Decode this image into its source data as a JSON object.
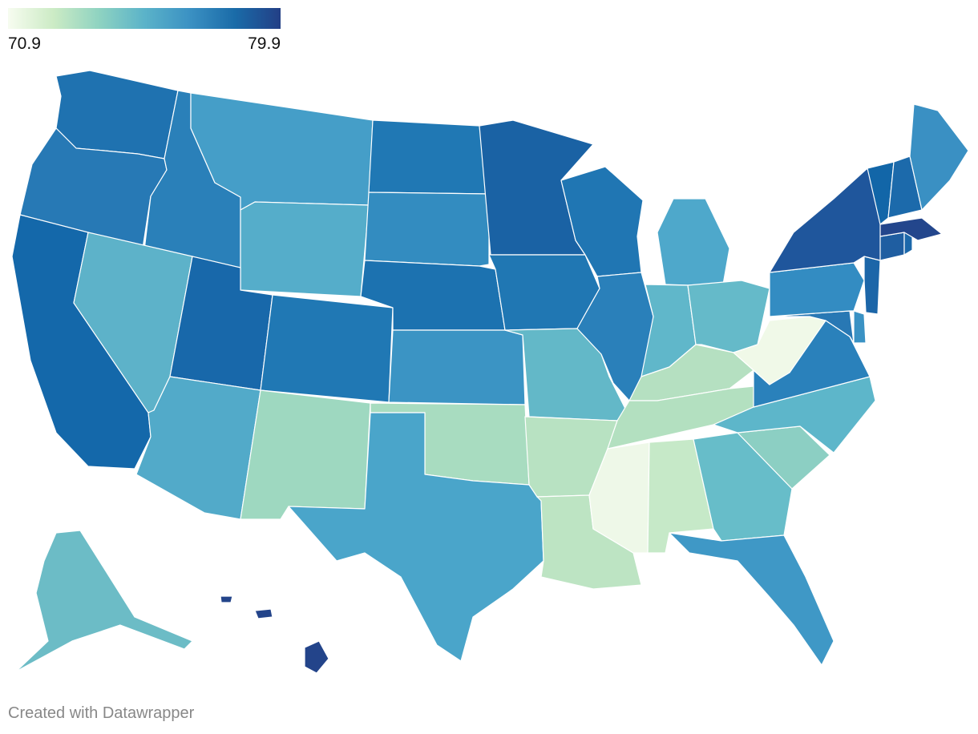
{
  "legend": {
    "min": "70.9",
    "max": "79.9",
    "min_value": 70.9,
    "max_value": 79.9,
    "gradient": [
      "#f7fcf0",
      "#ccebc5",
      "#8fd3c1",
      "#5bb3c9",
      "#3b91c3",
      "#1a6ba8",
      "#233f86"
    ]
  },
  "credit": "Created with Datawrapper",
  "states": [
    {
      "id": "WA",
      "name": "Washington",
      "color": "#1f72b0"
    },
    {
      "id": "OR",
      "name": "Oregon",
      "color": "#2779b5"
    },
    {
      "id": "CA",
      "name": "California",
      "color": "#1468aa"
    },
    {
      "id": "ID",
      "name": "Idaho",
      "color": "#2a80b9"
    },
    {
      "id": "NV",
      "name": "Nevada",
      "color": "#5db2c9"
    },
    {
      "id": "MT",
      "name": "Montana",
      "color": "#459ec8"
    },
    {
      "id": "WY",
      "name": "Wyoming",
      "color": "#55adca"
    },
    {
      "id": "UT",
      "name": "Utah",
      "color": "#1868aa"
    },
    {
      "id": "AZ",
      "name": "Arizona",
      "color": "#52aac9"
    },
    {
      "id": "CO",
      "name": "Colorado",
      "color": "#2078b4"
    },
    {
      "id": "NM",
      "name": "New Mexico",
      "color": "#9ed8c0"
    },
    {
      "id": "ND",
      "name": "North Dakota",
      "color": "#2078b4"
    },
    {
      "id": "SD",
      "name": "South Dakota",
      "color": "#338cc0"
    },
    {
      "id": "NE",
      "name": "Nebraska",
      "color": "#1c72b0"
    },
    {
      "id": "KS",
      "name": "Kansas",
      "color": "#3b94c4"
    },
    {
      "id": "OK",
      "name": "Oklahoma",
      "color": "#a8dcc0"
    },
    {
      "id": "TX",
      "name": "Texas",
      "color": "#4aa5ca"
    },
    {
      "id": "MN",
      "name": "Minnesota",
      "color": "#1a62a4"
    },
    {
      "id": "IA",
      "name": "Iowa",
      "color": "#2077b3"
    },
    {
      "id": "MO",
      "name": "Missouri",
      "color": "#63b8c8"
    },
    {
      "id": "AR",
      "name": "Arkansas",
      "color": "#b8e2c2"
    },
    {
      "id": "LA",
      "name": "Louisiana",
      "color": "#bde4c3"
    },
    {
      "id": "WI",
      "name": "Wisconsin",
      "color": "#2076b3"
    },
    {
      "id": "IL",
      "name": "Illinois",
      "color": "#2a80ba"
    },
    {
      "id": "MI",
      "name": "Michigan",
      "color": "#4ea8cb"
    },
    {
      "id": "IN",
      "name": "Indiana",
      "color": "#60b7ca"
    },
    {
      "id": "OH",
      "name": "Ohio",
      "color": "#65bac9"
    },
    {
      "id": "KY",
      "name": "Kentucky",
      "color": "#b5e0c1"
    },
    {
      "id": "TN",
      "name": "Tennessee",
      "color": "#b3e0c0"
    },
    {
      "id": "MS",
      "name": "Mississippi",
      "color": "#eef8e8"
    },
    {
      "id": "AL",
      "name": "Alabama",
      "color": "#c6e9c8"
    },
    {
      "id": "GA",
      "name": "Georgia",
      "color": "#67bdc9"
    },
    {
      "id": "FL",
      "name": "Florida",
      "color": "#3f98c6"
    },
    {
      "id": "SC",
      "name": "South Carolina",
      "color": "#8ccfc3"
    },
    {
      "id": "NC",
      "name": "North Carolina",
      "color": "#5db6ca"
    },
    {
      "id": "VA",
      "name": "Virginia",
      "color": "#2a81bb"
    },
    {
      "id": "WV",
      "name": "West Virginia",
      "color": "#f0f9e8"
    },
    {
      "id": "MD",
      "name": "Maryland",
      "color": "#2878b4"
    },
    {
      "id": "DE",
      "name": "Delaware",
      "color": "#3a92c4"
    },
    {
      "id": "PA",
      "name": "Pennsylvania",
      "color": "#338cc2"
    },
    {
      "id": "NJ",
      "name": "New Jersey",
      "color": "#1c66a8"
    },
    {
      "id": "NY",
      "name": "New York",
      "color": "#1f569c"
    },
    {
      "id": "CT",
      "name": "Connecticut",
      "color": "#1f5ea1"
    },
    {
      "id": "RI",
      "name": "Rhode Island",
      "color": "#1c68aa"
    },
    {
      "id": "MA",
      "name": "Massachusetts",
      "color": "#23468c"
    },
    {
      "id": "VT",
      "name": "Vermont",
      "color": "#1266a8"
    },
    {
      "id": "NH",
      "name": "New Hampshire",
      "color": "#1c6aab"
    },
    {
      "id": "ME",
      "name": "Maine",
      "color": "#3a90c3"
    },
    {
      "id": "AK",
      "name": "Alaska",
      "color": "#6cbcc6"
    },
    {
      "id": "HI",
      "name": "Hawaii",
      "color": "#23448a"
    }
  ]
}
